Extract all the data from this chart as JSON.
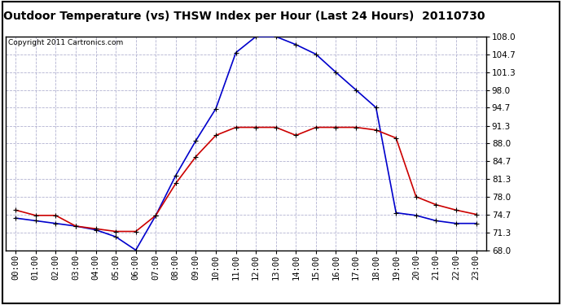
{
  "title": "Outdoor Temperature (vs) THSW Index per Hour (Last 24 Hours)  20110730",
  "copyright": "Copyright 2011 Cartronics.com",
  "hours": [
    "00:00",
    "01:00",
    "02:00",
    "03:00",
    "04:00",
    "05:00",
    "06:00",
    "07:00",
    "08:00",
    "09:00",
    "10:00",
    "11:00",
    "12:00",
    "13:00",
    "14:00",
    "15:00",
    "16:00",
    "17:00",
    "18:00",
    "19:00",
    "20:00",
    "21:00",
    "22:00",
    "23:00"
  ],
  "temp_red": [
    75.5,
    74.5,
    74.5,
    72.5,
    72.0,
    71.5,
    71.5,
    74.5,
    80.5,
    85.5,
    89.5,
    91.0,
    91.0,
    91.0,
    89.5,
    91.0,
    91.0,
    91.0,
    90.5,
    89.0,
    78.0,
    76.5,
    75.5,
    74.7
  ],
  "thsw_blue": [
    74.0,
    73.5,
    73.0,
    72.5,
    71.8,
    70.5,
    68.0,
    74.5,
    82.0,
    88.5,
    94.5,
    105.0,
    108.0,
    108.0,
    106.5,
    104.7,
    101.3,
    98.0,
    94.7,
    75.0,
    74.5,
    73.5,
    73.0,
    73.0
  ],
  "y_ticks": [
    68.0,
    71.3,
    74.7,
    78.0,
    81.3,
    84.7,
    88.0,
    91.3,
    94.7,
    98.0,
    101.3,
    104.7,
    108.0
  ],
  "ylim": [
    68.0,
    108.0
  ],
  "bg_color": "#ffffff",
  "grid_color": "#aaaacc",
  "red_color": "#cc0000",
  "blue_color": "#0000cc",
  "title_fontsize": 10,
  "copyright_fontsize": 6.5,
  "tick_fontsize": 7.5,
  "ytick_fontsize": 7.5
}
